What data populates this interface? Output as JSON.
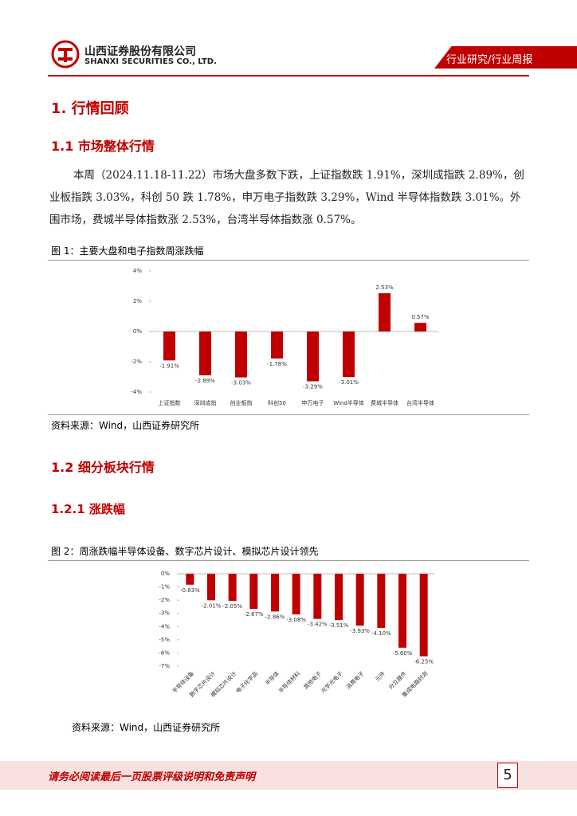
{
  "header": {
    "company": "山西证券股份有限公司",
    "company_en": "SHANXI SECURITIES CO., LTD.",
    "tag": "行业研究/行业周报"
  },
  "sections": [
    {
      "title": "1. 行情回顾"
    },
    {
      "title": "1.1  市场整体行情",
      "paragraph": "本周（2024.11.18-11.22）市场大盘多数下跌，上证指数跌 1.91%，深圳成指跌 2.89%，创业板指跌 3.03%，科创 50 跌 1.78%，申万电子指数跌 3.29%，Wind 半导体指数跌 3.01%。外围市场，费城半导体指数涨 2.53%，台湾半导体指数涨 0.57%。",
      "figure_caption": "图 1：主要大盘和电子指数周涨跌幅",
      "source": "资料来源：Wind，山西证券研究所"
    },
    {
      "title": "1.2  细分板块行情"
    },
    {
      "title": "1.2.1  涨跌幅",
      "figure_caption": "图 2：周涨跌幅半导体设备、数字芯片设计、模拟芯片设计领先",
      "source": "资料来源：Wind，山西证券研究所"
    }
  ],
  "chart_data": [
    {
      "type": "bar",
      "color": "#c00000",
      "categories": [
        "上证指数",
        "深圳成指",
        "创业板指",
        "科创50",
        "申万电子",
        "Wind半导体",
        "费城半导体",
        "台湾半导体"
      ],
      "values": [
        -1.91,
        -2.89,
        -3.03,
        -1.78,
        -3.29,
        -3.01,
        2.53,
        0.57
      ],
      "value_labels": [
        "-1.91%",
        "-2.89%",
        "-3.03%",
        "-1.78%",
        "-3.29%",
        "-3.01%",
        "2.53%",
        "0.57%"
      ],
      "ylim": [
        -4,
        4
      ],
      "yticks": [
        {
          "value": 4,
          "label": "4%"
        },
        {
          "value": 2,
          "label": "2%"
        },
        {
          "value": 0,
          "label": "0%"
        },
        {
          "value": -2,
          "label": "-2%"
        },
        {
          "value": -4,
          "label": "-4%"
        }
      ],
      "grid": false
    },
    {
      "type": "bar",
      "color": "#c00000",
      "categories": [
        "半导体设备",
        "数字芯片设计",
        "模拟芯片设计",
        "电子化学品",
        "半导体",
        "半导体材料",
        "其他电子",
        "光学光电子",
        "消费电子",
        "元件",
        "分立器件",
        "集成电路封测"
      ],
      "values": [
        -0.83,
        -2.01,
        -2.05,
        -2.67,
        -2.86,
        -3.08,
        -3.42,
        -3.51,
        -3.93,
        -4.1,
        -5.6,
        -6.25
      ],
      "value_labels": [
        "-0.83%",
        "-2.01%",
        "-2.05%",
        "-2.67%",
        "-2.86%",
        "-3.08%",
        "-3.42%",
        "-3.51%",
        "-3.93%",
        "-4.10%",
        "-5.60%",
        "-6.25%"
      ],
      "ylim": [
        -7,
        0
      ],
      "yticks": [
        {
          "value": 0,
          "label": "0%"
        },
        {
          "value": -1,
          "label": "-1%"
        },
        {
          "value": -2,
          "label": "-2%"
        },
        {
          "value": -3,
          "label": "-3%"
        },
        {
          "value": -4,
          "label": "-4%"
        },
        {
          "value": -5,
          "label": "-5%"
        },
        {
          "value": -6,
          "label": "-6%"
        },
        {
          "value": -7,
          "label": "-7%"
        }
      ],
      "grid": false
    }
  ],
  "footer": {
    "disclaimer": "请务必阅读最后一页股票评级说明和免责声明",
    "page": "5"
  }
}
